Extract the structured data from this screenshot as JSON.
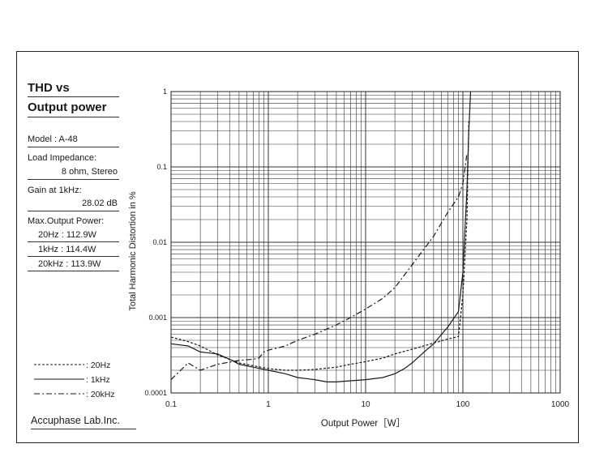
{
  "header": {
    "title_line1": "THD vs",
    "title_line2": "Output power"
  },
  "specs": {
    "model": "Model    : A-48",
    "load_label": "Load Impedance:",
    "load_value": "8 ohm, Stereo",
    "gain_label": "Gain at 1kHz:",
    "gain_value": "28.02 dB",
    "maxpower_label": "Max.Output Power:",
    "rows": [
      "20Hz   :  112.9W",
      "1kHz   :  114.4W",
      "20kHz  :  113.9W"
    ]
  },
  "footer": {
    "company": "Accuphase Lab.Inc."
  },
  "chart_data": {
    "type": "line",
    "xlabel": "Output Power［W］",
    "ylabel": "Total Harmonic Distortion in %",
    "x_scale": "log",
    "y_scale": "log",
    "xlim": [
      0.1,
      1000
    ],
    "ylim": [
      0.0001,
      1
    ],
    "x_tick_labels": [
      "0.1",
      "1",
      "10",
      "100",
      "1000"
    ],
    "y_tick_labels": [
      "1",
      "0.1",
      "0.01",
      "0.001",
      "0.0001"
    ],
    "grid": true,
    "legend_placement": "bottom-left",
    "line_color": "#1a1a1a",
    "series": [
      {
        "name": ": 20Hz",
        "dash": "short-dash",
        "x": [
          0.1,
          0.15,
          0.2,
          0.3,
          0.5,
          0.7,
          1,
          1.5,
          2,
          3,
          5,
          7,
          10,
          15,
          20,
          30,
          50,
          70,
          90,
          100,
          110,
          115
        ],
        "y": [
          0.00055,
          0.00048,
          0.00042,
          0.00032,
          0.00025,
          0.00023,
          0.00021,
          0.0002,
          0.0002,
          0.000205,
          0.00022,
          0.00024,
          0.00026,
          0.00029,
          0.00033,
          0.00038,
          0.00046,
          0.00052,
          0.00056,
          0.002,
          0.02,
          0.4
        ]
      },
      {
        "name": ": 1kHz",
        "dash": "solid",
        "x": [
          0.1,
          0.15,
          0.2,
          0.3,
          0.4,
          0.5,
          0.7,
          1,
          1.5,
          2,
          3,
          4,
          5,
          7,
          10,
          15,
          20,
          25,
          30,
          40,
          50,
          70,
          90,
          100,
          110,
          115,
          120
        ],
        "y": [
          0.00045,
          0.00042,
          0.00035,
          0.00033,
          0.00028,
          0.00024,
          0.00022,
          0.0002,
          0.00018,
          0.00016,
          0.00015,
          0.00014,
          0.00014,
          0.000145,
          0.00015,
          0.00016,
          0.00018,
          0.00021,
          0.00025,
          0.00035,
          0.00045,
          0.00075,
          0.0012,
          0.004,
          0.05,
          0.3,
          1
        ]
      },
      {
        "name": ": 20kHz",
        "dash": "dash-dot",
        "x": [
          0.1,
          0.15,
          0.2,
          0.3,
          0.5,
          0.7,
          0.8,
          0.9,
          1,
          1.5,
          2,
          3,
          5,
          7,
          10,
          15,
          20,
          30,
          50,
          70,
          90,
          100,
          110
        ],
        "y": [
          0.00015,
          0.00025,
          0.0002,
          0.00024,
          0.00027,
          0.00028,
          0.00029,
          0.00035,
          0.00037,
          0.00042,
          0.0005,
          0.0006,
          0.0008,
          0.001,
          0.0013,
          0.0018,
          0.0025,
          0.005,
          0.012,
          0.025,
          0.04,
          0.06,
          0.15
        ]
      }
    ]
  }
}
